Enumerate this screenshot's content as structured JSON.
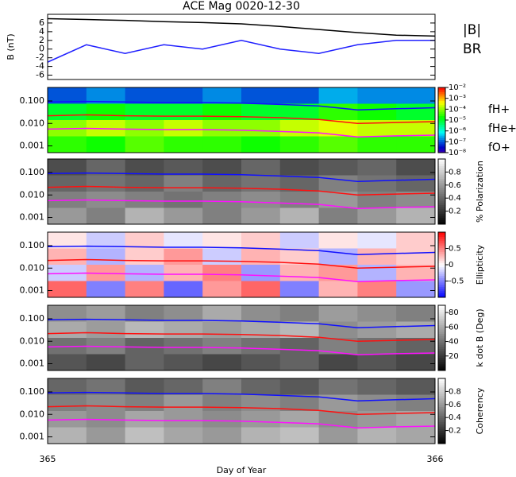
{
  "chart_data": [
    {
      "type": "line",
      "title": "ACE Mag 0020-12-30",
      "ylabel": "B (nT)",
      "xlim": [
        365,
        366
      ],
      "ylim": [
        -7,
        8
      ],
      "yticks": [
        -6,
        -4,
        -2,
        0,
        2,
        4,
        6
      ],
      "x": [
        365,
        365.1,
        365.2,
        365.3,
        365.4,
        365.5,
        365.6,
        365.7,
        365.8,
        365.9,
        366
      ],
      "series": [
        {
          "name": "|B|",
          "color": "#000000",
          "values": [
            7,
            6.8,
            6.6,
            6.3,
            6.1,
            5.8,
            5.2,
            4.5,
            3.8,
            3.2,
            3
          ]
        },
        {
          "name": "BR",
          "color": "#2020ff",
          "values": [
            -3,
            1,
            -1,
            1,
            0,
            2,
            0,
            -1,
            1,
            2,
            2
          ]
        }
      ]
    },
    {
      "type": "heatmap",
      "colormap": "rainbow",
      "ylog": true,
      "zlog": true,
      "xlim": [
        365,
        366
      ],
      "ylim": [
        0.0005,
        0.4
      ],
      "yticks": [
        {
          "value": 0.001,
          "label": "0.001"
        },
        {
          "value": 0.01,
          "label": "0.010"
        },
        {
          "value": 0.1,
          "label": "0.100"
        }
      ],
      "zlim": [
        1e-08,
        0.01
      ],
      "cticks": [
        {
          "value": 0.01,
          "label": "10⁻²"
        },
        {
          "value": 0.001,
          "label": "10⁻³"
        },
        {
          "value": 0.0001,
          "label": "10⁻⁴"
        },
        {
          "value": 1e-05,
          "label": "10⁻⁵"
        },
        {
          "value": 1e-06,
          "label": "10⁻⁶"
        },
        {
          "value": 1e-07,
          "label": "10⁻⁷"
        },
        {
          "value": 1e-08,
          "label": "10⁻⁸"
        }
      ],
      "z": [
        [
          1e-07,
          2e-07,
          1e-07,
          1e-07,
          2e-07,
          1e-07,
          1e-07,
          3e-07,
          2e-07,
          2e-07
        ],
        [
          1e-05,
          2e-05,
          1e-05,
          1e-05,
          2e-05,
          1e-05,
          1e-05,
          3e-05,
          2e-05,
          1e-05
        ],
        [
          0.0001,
          0.0002,
          0.0001,
          0.0002,
          0.0001,
          0.0001,
          0.0002,
          0.0003,
          0.0002,
          0.0002
        ],
        [
          3e-05,
          2e-05,
          5e-05,
          3e-05,
          3e-05,
          2e-05,
          3e-05,
          5e-05,
          3e-05,
          3e-05
        ]
      ],
      "x": [
        365,
        365.1,
        365.2,
        365.3,
        365.4,
        365.5,
        365.6,
        365.7,
        365.8,
        365.9,
        366
      ],
      "series": [
        {
          "name": "fH+",
          "color": "#1010ff",
          "values": [
            0.09,
            0.095,
            0.09,
            0.085,
            0.085,
            0.08,
            0.07,
            0.06,
            0.04,
            0.045,
            0.05
          ]
        },
        {
          "name": "fHe+",
          "color": "#ff1010",
          "values": [
            0.022,
            0.024,
            0.022,
            0.021,
            0.021,
            0.02,
            0.018,
            0.015,
            0.01,
            0.011,
            0.012
          ]
        },
        {
          "name": "fO+",
          "color": "#ff10ff",
          "values": [
            0.0056,
            0.006,
            0.0056,
            0.0053,
            0.0053,
            0.005,
            0.0044,
            0.0038,
            0.0025,
            0.0028,
            0.003
          ]
        }
      ]
    },
    {
      "type": "heatmap",
      "colormap": "gray",
      "ylog": true,
      "clabel": "% Polarization",
      "xlim": [
        365,
        366
      ],
      "ylim": [
        0.0005,
        0.4
      ],
      "yticks": [
        {
          "value": 0.001,
          "label": "0.001"
        },
        {
          "value": 0.01,
          "label": "0.010"
        },
        {
          "value": 0.1,
          "label": "0.100"
        }
      ],
      "zlim": [
        0,
        1
      ],
      "cticks": [
        0.2,
        0.4,
        0.6,
        0.8
      ],
      "z": [
        [
          0.3,
          0.4,
          0.3,
          0.35,
          0.3,
          0.4,
          0.3,
          0.35,
          0.4,
          0.3
        ],
        [
          0.4,
          0.45,
          0.4,
          0.5,
          0.4,
          0.45,
          0.4,
          0.5,
          0.45,
          0.4
        ],
        [
          0.5,
          0.55,
          0.5,
          0.45,
          0.5,
          0.55,
          0.5,
          0.6,
          0.5,
          0.55
        ],
        [
          0.6,
          0.5,
          0.7,
          0.6,
          0.5,
          0.6,
          0.7,
          0.5,
          0.6,
          0.7
        ]
      ],
      "x": [
        365,
        365.1,
        365.2,
        365.3,
        365.4,
        365.5,
        365.6,
        365.7,
        365.8,
        365.9,
        366
      ],
      "series": [
        {
          "color": "#1010ff",
          "values": [
            0.09,
            0.095,
            0.09,
            0.085,
            0.085,
            0.08,
            0.07,
            0.06,
            0.04,
            0.045,
            0.05
          ]
        },
        {
          "color": "#ff1010",
          "values": [
            0.022,
            0.024,
            0.022,
            0.021,
            0.021,
            0.02,
            0.018,
            0.015,
            0.01,
            0.011,
            0.012
          ]
        },
        {
          "color": "#ff10ff",
          "values": [
            0.0056,
            0.006,
            0.0056,
            0.0053,
            0.0053,
            0.005,
            0.0044,
            0.0038,
            0.0025,
            0.0028,
            0.003
          ]
        }
      ]
    },
    {
      "type": "heatmap",
      "colormap": "bwr",
      "ylog": true,
      "clabel": "Ellipticity",
      "xlim": [
        365,
        366
      ],
      "ylim": [
        0.0005,
        0.4
      ],
      "yticks": [
        {
          "value": 0.001,
          "label": "0.001"
        },
        {
          "value": 0.01,
          "label": "0.010"
        },
        {
          "value": 0.1,
          "label": "0.100"
        }
      ],
      "zlim": [
        -1,
        1
      ],
      "cticks": [
        -0.5,
        0,
        0.5
      ],
      "z": [
        [
          0.1,
          -0.2,
          0.2,
          -0.1,
          0.1,
          0.2,
          -0.2,
          0.1,
          -0.1,
          0.2
        ],
        [
          0.3,
          -0.3,
          0.2,
          0.4,
          -0.2,
          0.3,
          0.2,
          -0.3,
          0.3,
          0.2
        ],
        [
          -0.2,
          0.4,
          -0.3,
          0.3,
          0.5,
          -0.4,
          0.3,
          0.4,
          -0.3,
          0.3
        ],
        [
          0.6,
          -0.5,
          0.5,
          -0.6,
          0.4,
          0.6,
          -0.5,
          0.3,
          0.5,
          -0.4
        ]
      ],
      "x": [
        365,
        365.1,
        365.2,
        365.3,
        365.4,
        365.5,
        365.6,
        365.7,
        365.8,
        365.9,
        366
      ],
      "series": [
        {
          "color": "#1010ff",
          "values": [
            0.09,
            0.095,
            0.09,
            0.085,
            0.085,
            0.08,
            0.07,
            0.06,
            0.04,
            0.045,
            0.05
          ]
        },
        {
          "color": "#ff1010",
          "values": [
            0.022,
            0.024,
            0.022,
            0.021,
            0.021,
            0.02,
            0.018,
            0.015,
            0.01,
            0.011,
            0.012
          ]
        },
        {
          "color": "#ff10ff",
          "values": [
            0.0056,
            0.006,
            0.0056,
            0.0053,
            0.0053,
            0.005,
            0.0044,
            0.0038,
            0.0025,
            0.0028,
            0.003
          ]
        }
      ]
    },
    {
      "type": "heatmap",
      "colormap": "gray",
      "ylog": true,
      "clabel": "k dot B (Deg)",
      "xlim": [
        365,
        366
      ],
      "ylim": [
        0.0005,
        0.4
      ],
      "yticks": [
        {
          "value": 0.001,
          "label": "0.001"
        },
        {
          "value": 0.01,
          "label": "0.010"
        },
        {
          "value": 0.1,
          "label": "0.100"
        }
      ],
      "zlim": [
        0,
        90
      ],
      "cticks": [
        20,
        40,
        60,
        80
      ],
      "z": [
        [
          50,
          55,
          45,
          50,
          60,
          50,
          45,
          55,
          50,
          45
        ],
        [
          60,
          55,
          65,
          60,
          55,
          60,
          65,
          50,
          55,
          60
        ],
        [
          40,
          45,
          35,
          40,
          45,
          40,
          35,
          45,
          40,
          35
        ],
        [
          30,
          25,
          35,
          30,
          25,
          30,
          35,
          25,
          30,
          25
        ]
      ],
      "x": [
        365,
        365.1,
        365.2,
        365.3,
        365.4,
        365.5,
        365.6,
        365.7,
        365.8,
        365.9,
        366
      ],
      "series": [
        {
          "color": "#1010ff",
          "values": [
            0.09,
            0.095,
            0.09,
            0.085,
            0.085,
            0.08,
            0.07,
            0.06,
            0.04,
            0.045,
            0.05
          ]
        },
        {
          "color": "#ff1010",
          "values": [
            0.022,
            0.024,
            0.022,
            0.021,
            0.021,
            0.02,
            0.018,
            0.015,
            0.01,
            0.011,
            0.012
          ]
        },
        {
          "color": "#ff10ff",
          "values": [
            0.0056,
            0.006,
            0.0056,
            0.0053,
            0.0053,
            0.005,
            0.0044,
            0.0038,
            0.0025,
            0.0028,
            0.003
          ]
        }
      ]
    },
    {
      "type": "heatmap",
      "colormap": "gray",
      "ylog": true,
      "clabel": "Coherency",
      "xlabel": "Day of Year",
      "xlim": [
        365,
        366
      ],
      "xticks": [
        365,
        366
      ],
      "ylim": [
        0.0005,
        0.4
      ],
      "yticks": [
        {
          "value": 0.001,
          "label": "0.001"
        },
        {
          "value": 0.01,
          "label": "0.010"
        },
        {
          "value": 0.1,
          "label": "0.100"
        }
      ],
      "zlim": [
        0,
        1
      ],
      "cticks": [
        0.2,
        0.4,
        0.6,
        0.8
      ],
      "z": [
        [
          0.4,
          0.45,
          0.35,
          0.4,
          0.5,
          0.4,
          0.35,
          0.45,
          0.4,
          0.35
        ],
        [
          0.5,
          0.55,
          0.5,
          0.6,
          0.5,
          0.55,
          0.5,
          0.6,
          0.55,
          0.5
        ],
        [
          0.6,
          0.55,
          0.65,
          0.6,
          0.55,
          0.6,
          0.65,
          0.55,
          0.6,
          0.65
        ],
        [
          0.7,
          0.6,
          0.75,
          0.65,
          0.6,
          0.7,
          0.75,
          0.6,
          0.7,
          0.65
        ]
      ],
      "x": [
        365,
        365.1,
        365.2,
        365.3,
        365.4,
        365.5,
        365.6,
        365.7,
        365.8,
        365.9,
        366
      ],
      "series": [
        {
          "color": "#1010ff",
          "values": [
            0.09,
            0.095,
            0.09,
            0.085,
            0.085,
            0.08,
            0.07,
            0.06,
            0.04,
            0.045,
            0.05
          ]
        },
        {
          "color": "#ff1010",
          "values": [
            0.022,
            0.024,
            0.022,
            0.021,
            0.021,
            0.02,
            0.018,
            0.015,
            0.01,
            0.011,
            0.012
          ]
        },
        {
          "color": "#ff10ff",
          "values": [
            0.0056,
            0.006,
            0.0056,
            0.0053,
            0.0053,
            0.005,
            0.0044,
            0.0038,
            0.0025,
            0.0028,
            0.003
          ]
        }
      ]
    }
  ]
}
